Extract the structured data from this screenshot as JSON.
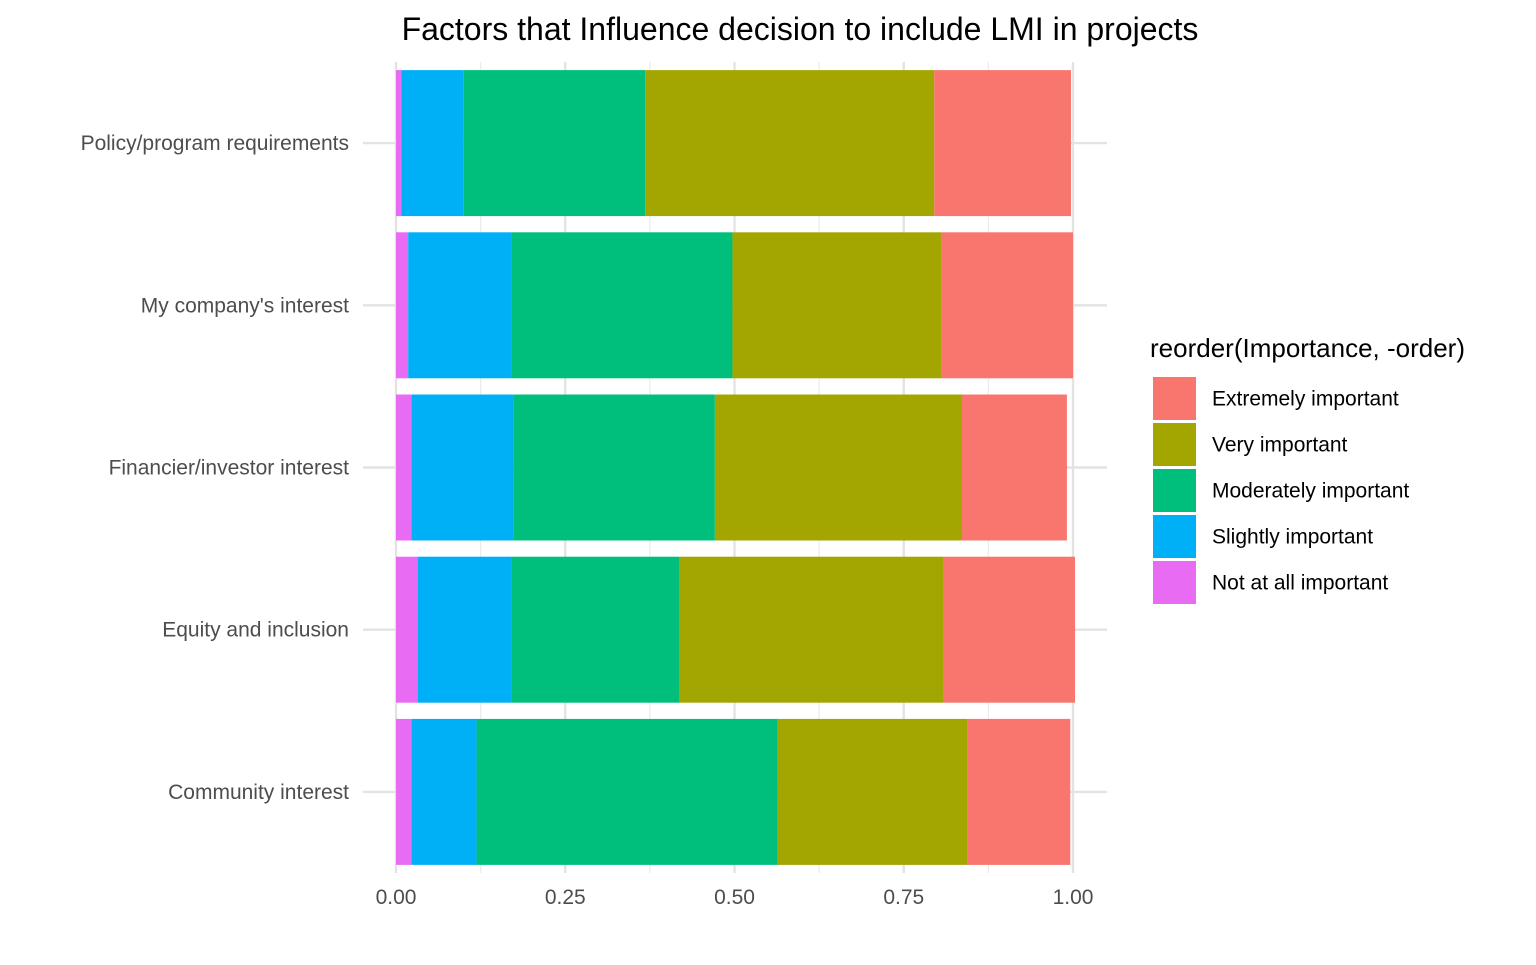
{
  "chart_data": {
    "type": "bar",
    "orientation": "horizontal",
    "stacked": true,
    "title": "Factors that Influence decision to include LMI in projects",
    "xlabel": "",
    "ylabel": "",
    "xlim": [
      0,
      1
    ],
    "x_ticks": [
      "0.00",
      "0.25",
      "0.50",
      "0.75",
      "1.00"
    ],
    "x_tick_values": [
      0,
      0.25,
      0.5,
      0.75,
      1.0
    ],
    "grid": true,
    "legend": {
      "title": "reorder(Importance, -order)",
      "position": "right"
    },
    "categories": [
      "Policy/program requirements",
      "My company's interest",
      "Financier/investor interest",
      "Equity and inclusion",
      "Community interest"
    ],
    "series": [
      {
        "name": "Extremely important",
        "color": "#F8766D",
        "values": [
          0.202,
          0.195,
          0.155,
          0.195,
          0.152
        ]
      },
      {
        "name": "Very important",
        "color": "#A3A500",
        "values": [
          0.427,
          0.308,
          0.365,
          0.39,
          0.28
        ]
      },
      {
        "name": "Moderately important",
        "color": "#00BF7D",
        "values": [
          0.268,
          0.327,
          0.298,
          0.248,
          0.445
        ]
      },
      {
        "name": "Slightly important",
        "color": "#00B0F6",
        "values": [
          0.092,
          0.152,
          0.15,
          0.138,
          0.096
        ]
      },
      {
        "name": "Not at all important",
        "color": "#E76BF3",
        "values": [
          0.008,
          0.018,
          0.023,
          0.032,
          0.023
        ]
      }
    ]
  }
}
